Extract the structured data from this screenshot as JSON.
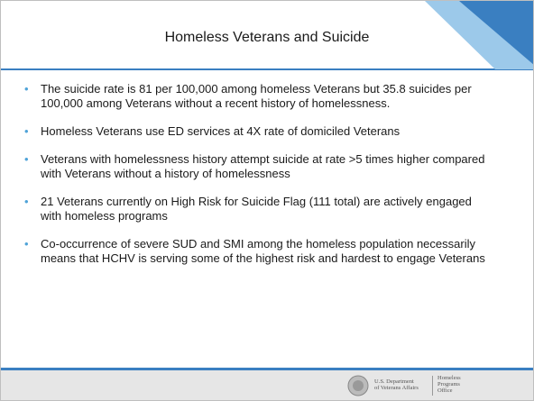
{
  "header": {
    "title": "Homeless Veterans and Suicide"
  },
  "bullets": [
    "The suicide rate is 81 per 100,000 among homeless Veterans but 35.8 suicides per 100,000 among Veterans without a recent history of homelessness.",
    "Homeless Veterans use ED services at 4X rate of domiciled Veterans",
    "Veterans with homelessness history attempt suicide at rate >5 times higher compared with Veterans without a history of homelessness",
    "21 Veterans currently on High Risk for Suicide Flag (111 total) are actively engaged with homeless programs",
    "Co-occurrence of severe SUD and SMI among the homeless population necessarily means that HCHV is serving some of the highest risk and hardest to engage Veterans"
  ],
  "footer": {
    "department": [
      "U.S. Department",
      "of Veterans Affairs"
    ],
    "office": [
      "Homeless",
      "Programs",
      "Office"
    ]
  }
}
